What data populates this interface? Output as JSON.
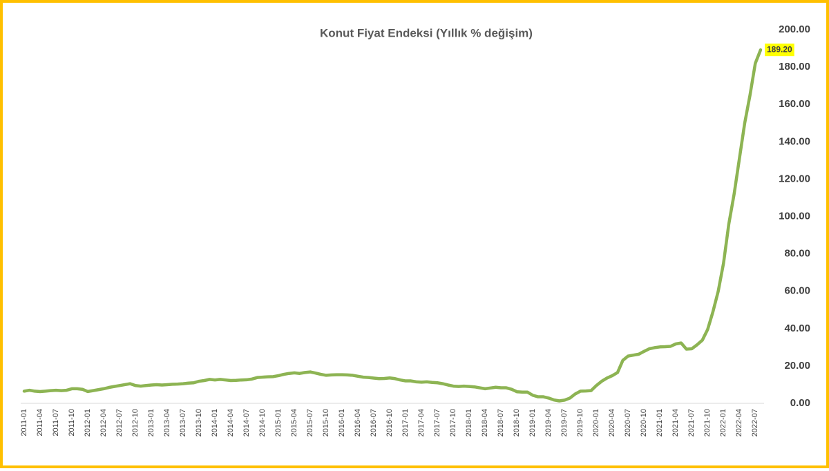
{
  "chart_data": {
    "type": "line",
    "title": "Konut Fiyat Endeksi (Yıllık % değişim)",
    "categories": [
      "2011-01",
      null,
      null,
      "2011-04",
      null,
      null,
      "2011-07",
      null,
      null,
      "2011-10",
      null,
      null,
      "2012-01",
      null,
      null,
      "2012-04",
      null,
      null,
      "2012-07",
      null,
      null,
      "2012-10",
      null,
      null,
      "2013-01",
      null,
      null,
      "2013-04",
      null,
      null,
      "2013-07",
      null,
      null,
      "2013-10",
      null,
      null,
      "2014-01",
      null,
      null,
      "2014-04",
      null,
      null,
      "2014-07",
      null,
      null,
      "2014-10",
      null,
      null,
      "2015-01",
      null,
      null,
      "2015-04",
      null,
      null,
      "2015-07",
      null,
      null,
      "2015-10",
      null,
      null,
      "2016-01",
      null,
      null,
      "2016-04",
      null,
      null,
      "2016-07",
      null,
      null,
      "2016-10",
      null,
      null,
      "2017-01",
      null,
      null,
      "2017-04",
      null,
      null,
      "2017-07",
      null,
      null,
      "2017-10",
      null,
      null,
      "2018-01",
      null,
      null,
      "2018-04",
      null,
      null,
      "2018-07",
      null,
      null,
      "2018-10",
      null,
      null,
      "2019-01",
      null,
      null,
      "2019-04",
      null,
      null,
      "2019-07",
      null,
      null,
      "2019-10",
      null,
      null,
      "2020-01",
      null,
      null,
      "2020-04",
      null,
      null,
      "2020-07",
      null,
      null,
      "2020-10",
      null,
      null,
      "2021-01",
      null,
      null,
      "2021-04",
      null,
      null,
      "2021-07",
      null,
      null,
      "2021-10",
      null,
      null,
      "2022-01",
      null,
      null,
      "2022-04",
      null,
      null,
      "2022-07",
      null
    ],
    "series": [
      {
        "color": "#8db453",
        "values": [
          6.5,
          7,
          6.5,
          6.3,
          6.5,
          6.8,
          7,
          6.8,
          7,
          7.8,
          7.8,
          7.5,
          6.3,
          6.8,
          7.3,
          7.8,
          8.5,
          9,
          9.5,
          10,
          10.5,
          9.5,
          9.2,
          9.5,
          9.8,
          10,
          9.8,
          10,
          10.2,
          10.3,
          10.5,
          10.8,
          11,
          11.8,
          12.2,
          12.8,
          12.5,
          12.8,
          12.5,
          12.2,
          12.3,
          12.5,
          12.6,
          13,
          13.8,
          14,
          14.2,
          14.3,
          14.8,
          15.5,
          16,
          16.3,
          16,
          16.5,
          16.8,
          16.2,
          15.5,
          15,
          15.2,
          15.3,
          15.3,
          15.2,
          15,
          14.5,
          14,
          13.8,
          13.5,
          13.2,
          13.3,
          13.6,
          13.2,
          12.5,
          12,
          12,
          11.5,
          11.3,
          11.5,
          11.2,
          11,
          10.5,
          9.8,
          9.2,
          9,
          9.2,
          9,
          8.8,
          8.3,
          7.8,
          8.2,
          8.6,
          8.3,
          8.3,
          7.5,
          6.2,
          6,
          6,
          4.3,
          3.5,
          3.5,
          2.8,
          1.8,
          1.3,
          1.7,
          2.8,
          5,
          6.5,
          6.6,
          6.8,
          9.5,
          11.8,
          13.5,
          14.8,
          16.5,
          23,
          25.3,
          25.8,
          26.3,
          27.8,
          29.2,
          29.8,
          30.2,
          30.3,
          30.5,
          31.8,
          32.3,
          29,
          29.2,
          31.3,
          33.8,
          39.5,
          49,
          60,
          75,
          96,
          112,
          131,
          150,
          165,
          182,
          189.2
        ],
        "value_labels": [
          null,
          null,
          null,
          null,
          null,
          null,
          null,
          null,
          null,
          null,
          null,
          null,
          null,
          null,
          null,
          null,
          null,
          null,
          null,
          null,
          null,
          null,
          null,
          null,
          null,
          null,
          null,
          null,
          null,
          null,
          null,
          null,
          null,
          null,
          null,
          null,
          null,
          null,
          null,
          null,
          null,
          null,
          null,
          null,
          null,
          null,
          null,
          null,
          null,
          null,
          null,
          null,
          null,
          null,
          null,
          null,
          null,
          null,
          null,
          null,
          null,
          null,
          null,
          null,
          null,
          null,
          null,
          null,
          null,
          null,
          null,
          null,
          null,
          null,
          null,
          null,
          null,
          null,
          null,
          null,
          null,
          null,
          null,
          null,
          null,
          null,
          null,
          null,
          null,
          null,
          null,
          null,
          null,
          null,
          null,
          null,
          null,
          null,
          null,
          null,
          null,
          null,
          null,
          null,
          null,
          null,
          null,
          null,
          null,
          null,
          null,
          null,
          null,
          null,
          null,
          null,
          null,
          null,
          null,
          null,
          null,
          null,
          null,
          null,
          null,
          null,
          null,
          null,
          null,
          null,
          null,
          null,
          null,
          null,
          null,
          null,
          null,
          null,
          null,
          "189.20"
        ]
      }
    ],
    "ylim": [
      0,
      200
    ],
    "yticks": [
      {
        "value": 0,
        "label": "0.00"
      },
      {
        "value": 20,
        "label": "20.00"
      },
      {
        "value": 40,
        "label": "40.00"
      },
      {
        "value": 60,
        "label": "60.00"
      },
      {
        "value": 80,
        "label": "80.00"
      },
      {
        "value": 100,
        "label": "100.00"
      },
      {
        "value": 120,
        "label": "120.00"
      },
      {
        "value": 140,
        "label": "140.00"
      },
      {
        "value": 160,
        "label": "160.00"
      },
      {
        "value": 180,
        "label": "180.00"
      },
      {
        "value": 200,
        "label": "200.00"
      }
    ],
    "grid": false
  }
}
